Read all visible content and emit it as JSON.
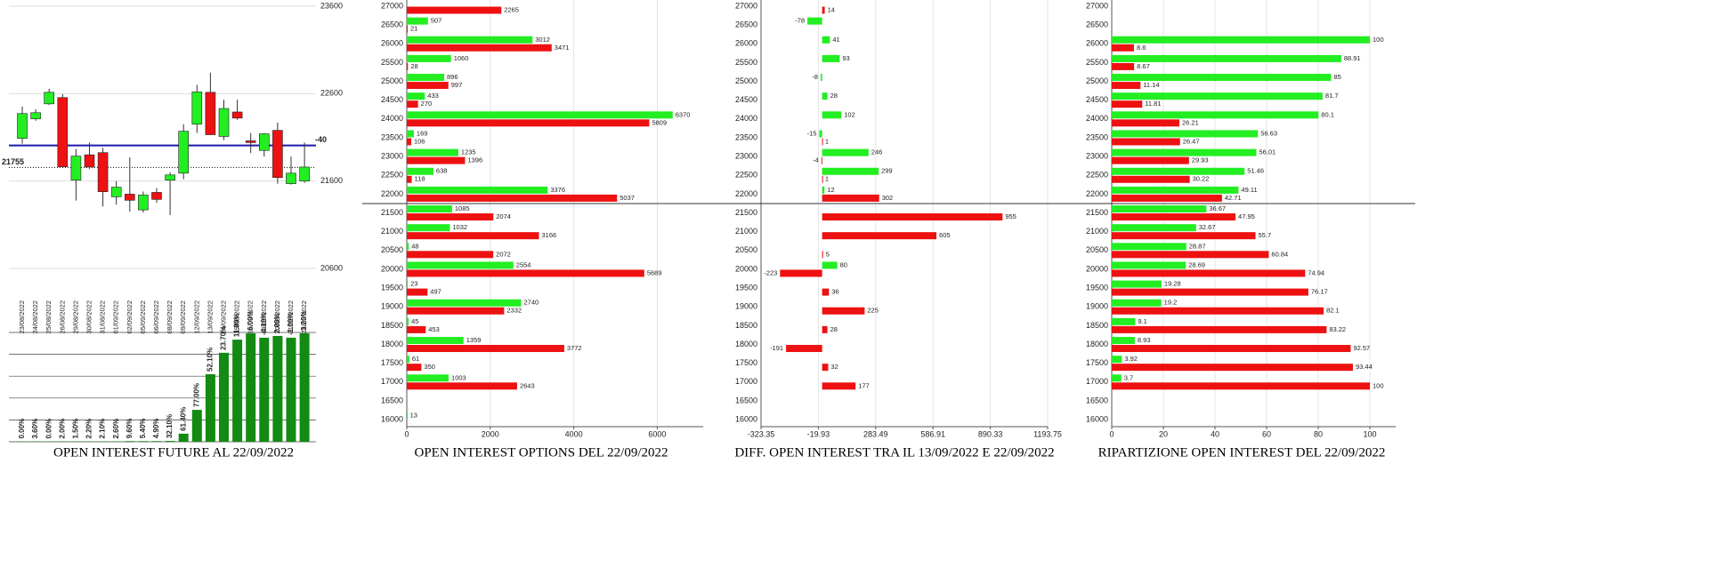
{
  "chart_data": [
    {
      "type": "candlestick",
      "categories": [
        "23/08/2022",
        "24/08/2022",
        "25/08/2022",
        "26/08/2022",
        "29/08/2022",
        "30/08/2022",
        "31/08/2022",
        "01/09/2022",
        "02/09/2022",
        "05/09/2022",
        "06/09/2022",
        "08/09/2022",
        "09/09/2022",
        "12/09/2022",
        "13/09/2022",
        "14/09/2022",
        "15/09/2022",
        "16/09/2022",
        "19/09/2022",
        "20/09/2022",
        "21/09/2022",
        "22/09/2022"
      ],
      "open": [
        22088,
        22311,
        22483,
        22555,
        21610,
        21900,
        21925,
        21420,
        21450,
        21270,
        21470,
        21610,
        21690,
        22250,
        22615,
        22110,
        22390,
        22060,
        21950,
        22180,
        21570,
        21600
      ],
      "close": [
        22372,
        22382,
        22615,
        21763,
        21885,
        21760,
        21478,
        21530,
        21380,
        21440,
        21390,
        21670,
        22170,
        22620,
        22130,
        22430,
        22320,
        22040,
        22140,
        21640,
        21690,
        21760
      ],
      "high": [
        22453,
        22420,
        22656,
        22595,
        21966,
        22040,
        21980,
        21600,
        21870,
        21480,
        21520,
        21700,
        22250,
        22700,
        22840,
        22530,
        22530,
        22150,
        22150,
        22270,
        21880,
        22040
      ],
      "low": [
        22027,
        22290,
        22470,
        21763,
        21377,
        21740,
        21310,
        21330,
        21250,
        21240,
        21350,
        21210,
        21620,
        22150,
        22130,
        22070,
        22300,
        21920,
        21880,
        21570,
        21560,
        21580
      ],
      "up_color": "#22ee22",
      "down_color": "#ee1111",
      "ylim": [
        20600,
        23600
      ],
      "yticks": [
        20600,
        21600,
        22600,
        23600
      ],
      "grid": true,
      "hline": {
        "value": 22007,
        "color": "#1a1aa8"
      },
      "last_value": 21755,
      "change": -40
    },
    {
      "type": "bar",
      "title": "OPEN INTEREST FUTURE AL 22/09/2022",
      "values": [
        0.02,
        0.02,
        0.02,
        0.02,
        0.02,
        0.02,
        0.02,
        0.02,
        0.03,
        0.03,
        0.03,
        0.04,
        0.37,
        1.46,
        3.09,
        4.07,
        4.67,
        4.96,
        4.76,
        4.84,
        4.76,
        4.96
      ],
      "color": "#138a13",
      "ylim": [
        0,
        5
      ],
      "grid_lines": [
        0,
        1,
        2,
        3,
        4,
        5
      ],
      "pct_change": {
        "values": [
          0,
          3.6,
          0,
          2,
          1.5,
          2.2,
          2.1,
          2.6,
          9.6,
          5.4,
          4.9,
          32.1,
          61.4,
          77,
          52.1,
          23.7,
          11.8,
          6,
          -4.1,
          2,
          -1,
          3.2
        ],
        "value_labels": [
          "0.00%",
          "3.60%",
          "0.00%",
          "2.00%",
          "1.50%",
          "2.20%",
          "2.10%",
          "2.60%",
          "9.60%",
          "5.40%",
          "4.90%",
          "32.10%",
          "61.40%",
          "77.00%",
          "52.10%",
          "23.70%",
          "11.80%",
          "6.00%",
          "-4.10%",
          "2.00%",
          "-1.00%",
          "3.20%"
        ]
      }
    },
    {
      "type": "hbar",
      "title": "OPEN INTEREST OPTIONS DEL 22/09/2022",
      "categories": [
        27000,
        26500,
        26000,
        25500,
        25000,
        24500,
        24000,
        23500,
        23000,
        22500,
        22000,
        21500,
        21000,
        20500,
        20000,
        19500,
        19000,
        18500,
        18000,
        17500,
        17000,
        16500,
        16000
      ],
      "series": [
        {
          "color": "#22ee22",
          "values": [
            null,
            507,
            3012,
            1060,
            896,
            433,
            6370,
            169,
            1235,
            638,
            3376,
            1085,
            1032,
            48,
            2554,
            23,
            2740,
            45,
            1359,
            61,
            1003,
            null,
            13
          ]
        },
        {
          "color": "#ee1111",
          "values": [
            2265,
            21,
            3471,
            28,
            997,
            270,
            5809,
            106,
            1396,
            118,
            5037,
            2074,
            3166,
            2072,
            5689,
            497,
            2332,
            453,
            3772,
            350,
            2643,
            null,
            null
          ]
        }
      ],
      "xlim": [
        0,
        7100
      ],
      "xticks": [
        0,
        2000,
        4000,
        6000
      ],
      "grid": true
    },
    {
      "type": "hbar",
      "title": "DIFF. OPEN INTEREST TRA IL 13/09/2022 E 22/09/2022",
      "categories": [
        27000,
        26500,
        26000,
        25500,
        25000,
        24500,
        24000,
        23500,
        23000,
        22500,
        22000,
        21500,
        21000,
        20500,
        20000,
        19500,
        19000,
        18500,
        18000,
        17500,
        17000,
        16500,
        16000
      ],
      "series": [
        {
          "color": "#22ee22",
          "values": [
            null,
            -78,
            41,
            93,
            -8,
            28,
            102,
            -15,
            246,
            299,
            12,
            null,
            null,
            null,
            80,
            null,
            null,
            null,
            null,
            null,
            null,
            null,
            null
          ]
        },
        {
          "color": "#ee1111",
          "values": [
            14,
            null,
            null,
            null,
            null,
            null,
            null,
            1,
            -4,
            1,
            302,
            955,
            605,
            5,
            -223,
            36,
            225,
            28,
            -191,
            32,
            177,
            null,
            null
          ]
        }
      ],
      "xlim": [
        -323.35,
        1193.75
      ],
      "xticks": [
        -323.35,
        -19.93,
        283.49,
        586.91,
        890.33,
        1193.75
      ],
      "grid": true
    },
    {
      "type": "hbar",
      "title": "RIPARTIZIONE OPEN INTEREST DEL 22/09/2022",
      "categories": [
        27000,
        26500,
        26000,
        25500,
        25000,
        24500,
        24000,
        23500,
        23000,
        22500,
        22000,
        21500,
        21000,
        20500,
        20000,
        19500,
        19000,
        18500,
        18000,
        17500,
        17000,
        16500,
        16000
      ],
      "series": [
        {
          "color": "#22ee22",
          "values": [
            null,
            null,
            100,
            88.91,
            85,
            81.7,
            80.1,
            56.63,
            56.01,
            51.46,
            49.11,
            36.67,
            32.67,
            28.87,
            28.69,
            19.28,
            19.2,
            9.1,
            8.93,
            3.92,
            3.7,
            null,
            null
          ]
        },
        {
          "color": "#ee1111",
          "values": [
            null,
            null,
            8.6,
            8.67,
            11.14,
            11.81,
            26.21,
            26.47,
            29.93,
            30.22,
            42.71,
            47.95,
            55.7,
            60.84,
            74.94,
            76.17,
            82.1,
            83.22,
            92.57,
            93.44,
            100,
            null,
            null
          ]
        }
      ],
      "xlim": [
        0,
        110
      ],
      "xticks": [
        0,
        20,
        40,
        60,
        80,
        100
      ],
      "grid": true
    }
  ]
}
